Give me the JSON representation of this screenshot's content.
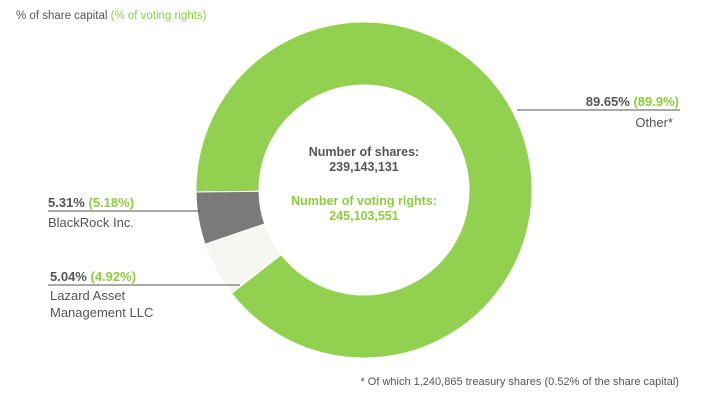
{
  "header": {
    "prefix": "%  of share capital",
    "green": "(% of voting rights)"
  },
  "footnote": "* Of which 1,240,865 treasury shares (0.52% of the share capital)",
  "colors": {
    "other": "#92d050",
    "blackrock": "#f5f5f1",
    "lazard": "#7a7a7a",
    "green_text": "#8ccd3a",
    "gray_text": "#555555"
  },
  "chart_data": {
    "type": "pie",
    "donut": true,
    "title": "",
    "center": {
      "shares_label": "Number of shares:",
      "shares_value": "239,143,131",
      "voting_label": "Number of voting rights:",
      "voting_value": "245,103,551"
    },
    "slices": [
      {
        "name": "Other*",
        "share_pct": 89.65,
        "voting_pct": 89.9,
        "pct_text": "89.65%",
        "voting_text": "(89.9%)",
        "color": "#92d050"
      },
      {
        "name": "BlackRock Inc.",
        "share_pct": 5.31,
        "voting_pct": 5.18,
        "pct_text": "5.31%",
        "voting_text": "(5.18%)",
        "color": "#f5f5f1"
      },
      {
        "name": "Lazard Asset Management LLC",
        "name_lines": [
          "Lazard Asset",
          "Management LLC"
        ],
        "share_pct": 5.04,
        "voting_pct": 4.92,
        "pct_text": "5.04%",
        "voting_text": "(4.92%)",
        "color": "#7a7a7a"
      }
    ]
  }
}
